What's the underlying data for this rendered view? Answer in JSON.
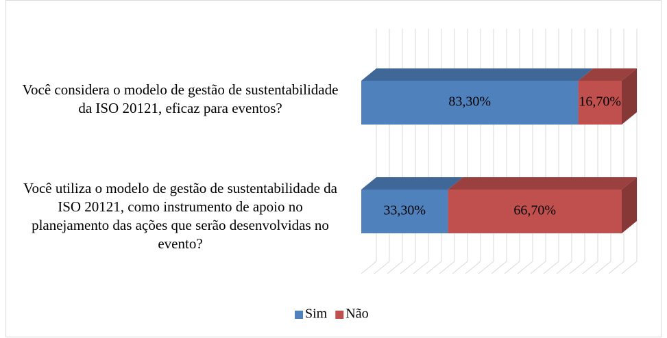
{
  "chart_data": {
    "type": "bar3d_stacked_horizontal",
    "categories": [
      "Você considera o modelo de gestão de sustentabilidade da ISO 20121, eficaz para eventos?",
      "Você utiliza o modelo de gestão de sustentabilidade da ISO 20121, como instrumento de apoio no planejamento das ações que serão desenvolvidas no evento?"
    ],
    "series": [
      {
        "name": "Sim",
        "color": "#4f81bd",
        "values": [
          83.3,
          33.3
        ],
        "value_labels": [
          "83,30%",
          "33,30%"
        ]
      },
      {
        "name": "Não",
        "color": "#c0504d",
        "values": [
          16.7,
          66.7
        ],
        "value_labels": [
          "16,70%",
          "66,70%"
        ]
      }
    ],
    "xlim": [
      0,
      100
    ],
    "grid": true,
    "legend": "bottom"
  }
}
